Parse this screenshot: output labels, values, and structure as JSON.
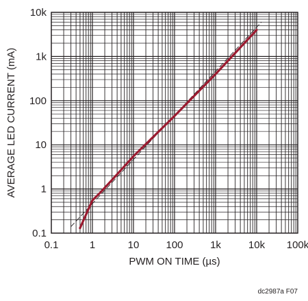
{
  "chart_data": {
    "type": "line",
    "xlabel": "PWM ON TIME (µs)",
    "ylabel": "AVERAGE LED CURRENT (mA)",
    "x_scale": "log",
    "y_scale": "log",
    "xlim": [
      0.1,
      100000
    ],
    "ylim": [
      0.1,
      10000
    ],
    "grid": true,
    "x_ticks": [
      {
        "value": 0.1,
        "label": "0.1"
      },
      {
        "value": 1,
        "label": "1"
      },
      {
        "value": 10,
        "label": "10"
      },
      {
        "value": 100,
        "label": "100"
      },
      {
        "value": 1000,
        "label": "1k"
      },
      {
        "value": 10000,
        "label": "10k"
      },
      {
        "value": 100000,
        "label": "100k"
      }
    ],
    "y_ticks": [
      {
        "value": 0.1,
        "label": "0.1"
      },
      {
        "value": 1,
        "label": "1"
      },
      {
        "value": 10,
        "label": "10"
      },
      {
        "value": 100,
        "label": "100"
      },
      {
        "value": 1000,
        "label": "1k"
      },
      {
        "value": 10000,
        "label": "10k"
      }
    ],
    "series": [
      {
        "style": "solid",
        "color": "#9b1b30",
        "x": [
          0.5,
          0.8,
          1.0,
          1.5,
          3,
          10,
          100,
          1000,
          10000
        ],
        "y": [
          0.13,
          0.35,
          0.55,
          0.8,
          1.6,
          5.5,
          45,
          400,
          4000
        ]
      },
      {
        "style": "dashed",
        "color": "#231f20",
        "x": [
          0.3,
          13000
        ],
        "y": [
          0.14,
          6000
        ]
      }
    ]
  },
  "footnote": "dc2987a F07"
}
